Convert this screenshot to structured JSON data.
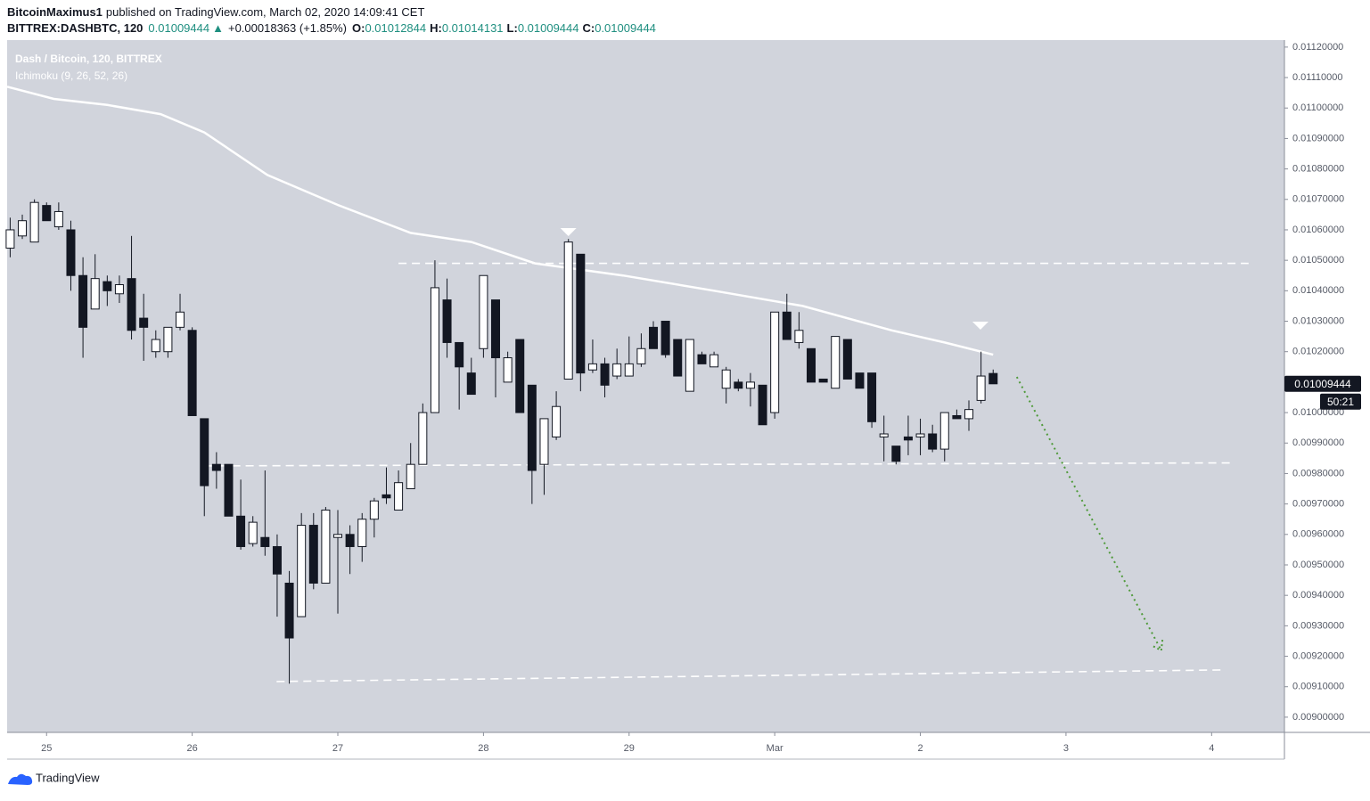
{
  "header": {
    "author": "BitcoinMaximus1",
    "published": "published on TradingView.com, March 02, 2020 14:09:41 CET",
    "symbol": "BITTREX:DASHBTC, 120",
    "arrow": "▲",
    "change": "+0.00018363 (+1.85%)",
    "o_label": "O:",
    "h_label": "H:",
    "l_label": "L:",
    "c_label": "C:",
    "countdown": "50:21",
    "footer": "TradingView"
  },
  "chart_data": {
    "type": "candlestick",
    "title": "Dash / Bitcoin, 120, BITTREX",
    "subtitle": "Ichimoku (9, 26, 52, 26)",
    "up_color": "#ffffff",
    "down_color": "#131722",
    "grid": false,
    "x": [
      -6,
      -4,
      -2,
      0,
      2,
      4,
      6,
      8,
      10,
      12,
      14,
      16,
      18,
      20,
      22,
      24,
      26,
      28,
      30,
      32,
      34,
      36,
      38,
      40,
      42,
      44,
      46,
      48,
      50,
      52,
      54,
      56,
      58,
      60,
      62,
      64,
      66,
      68,
      70,
      72,
      74,
      76,
      78,
      80,
      82,
      84,
      86,
      88,
      90,
      92,
      94,
      96,
      98,
      100,
      102,
      104,
      106,
      108,
      110,
      112,
      114,
      116,
      118,
      120,
      122,
      124,
      126,
      128,
      130,
      132,
      134,
      136,
      138,
      140,
      142,
      144,
      146,
      148,
      150,
      152,
      154,
      156
    ],
    "open": [
      0.01054,
      0.01058,
      0.01056,
      0.01068,
      0.01061,
      0.0106,
      0.01045,
      0.01034,
      0.01043,
      0.01039,
      0.01044,
      0.01031,
      0.0102,
      0.0102,
      0.01028,
      0.01027,
      0.00998,
      0.00983,
      0.00983,
      0.00966,
      0.00957,
      0.00959,
      0.00956,
      0.00944,
      0.00933,
      0.00963,
      0.00944,
      0.00959,
      0.0096,
      0.00956,
      0.00965,
      0.00973,
      0.00968,
      0.00975,
      0.00983,
      0.01,
      0.01037,
      0.01023,
      0.01013,
      0.01021,
      0.01037,
      0.0101,
      0.01024,
      0.01009,
      0.00983,
      0.00992,
      0.01011,
      0.01052,
      0.01014,
      0.01016,
      0.01012,
      0.01012,
      0.01016,
      0.01028,
      0.0103,
      0.01024,
      0.01007,
      0.01019,
      0.01015,
      0.01008,
      0.0101,
      0.01008,
      0.01009,
      0.01,
      0.01033,
      0.01023,
      0.01021,
      0.01011,
      0.01008,
      0.01024,
      0.01013,
      0.01013,
      0.00992,
      0.00989,
      0.00992,
      0.00992,
      0.00993,
      0.00988,
      0.00999,
      0.00998,
      0.01004,
      0.01012844
    ],
    "high": [
      0.01064,
      0.01065,
      0.0107,
      0.01069,
      0.01069,
      0.01063,
      0.01051,
      0.01052,
      0.01045,
      0.01045,
      0.01058,
      0.01039,
      0.01027,
      0.01028,
      0.01039,
      0.01028,
      0.00998,
      0.00987,
      0.00983,
      0.00978,
      0.00966,
      0.00981,
      0.0096,
      0.00948,
      0.00967,
      0.00967,
      0.00969,
      0.00968,
      0.00963,
      0.00967,
      0.00972,
      0.00982,
      0.00981,
      0.0099,
      0.01003,
      0.0105,
      0.01044,
      0.01023,
      0.01018,
      0.01045,
      0.01037,
      0.0102,
      0.01024,
      0.01009,
      0.00998,
      0.01007,
      0.01057,
      0.01052,
      0.01024,
      0.01018,
      0.01021,
      0.01025,
      0.01026,
      0.0103,
      0.0103,
      0.01024,
      0.01024,
      0.0102,
      0.0102,
      0.01015,
      0.01011,
      0.01013,
      0.01009,
      0.01033,
      0.01039,
      0.01033,
      0.01021,
      0.01011,
      0.01025,
      0.01024,
      0.01013,
      0.01013,
      0.00999,
      0.00989,
      0.00999,
      0.00998,
      0.00996,
      0.01,
      0.01001,
      0.01004,
      0.0102,
      0.01014131
    ],
    "low": [
      0.01051,
      0.01057,
      0.01056,
      0.01063,
      0.0106,
      0.0104,
      0.01018,
      0.01034,
      0.01035,
      0.01036,
      0.01024,
      0.01017,
      0.01018,
      0.01018,
      0.01027,
      0.00999,
      0.00966,
      0.00975,
      0.00966,
      0.00955,
      0.00956,
      0.00953,
      0.00933,
      0.00911,
      0.00933,
      0.00942,
      0.00944,
      0.00934,
      0.00947,
      0.00951,
      0.00959,
      0.0097,
      0.00968,
      0.00975,
      0.00983,
      0.01,
      0.01018,
      0.01001,
      0.01006,
      0.01018,
      0.01005,
      0.0101,
      0.01,
      0.0097,
      0.00973,
      0.00991,
      0.01011,
      0.01007,
      0.01013,
      0.01005,
      0.01011,
      0.01012,
      0.01015,
      0.01021,
      0.01018,
      0.01012,
      0.01007,
      0.01016,
      0.01015,
      0.01003,
      0.01007,
      0.01002,
      0.00996,
      0.00998,
      0.01024,
      0.01021,
      0.0101,
      0.0101,
      0.01008,
      0.01011,
      0.01008,
      0.00995,
      0.00984,
      0.00983,
      0.00986,
      0.00986,
      0.00987,
      0.00984,
      0.00998,
      0.00994,
      0.01003,
      0.01009444
    ],
    "close": [
      0.0106,
      0.01063,
      0.01069,
      0.01063,
      0.01066,
      0.01045,
      0.01028,
      0.01044,
      0.0104,
      0.01042,
      0.01027,
      0.01028,
      0.01024,
      0.01028,
      0.01033,
      0.00999,
      0.00976,
      0.00981,
      0.00966,
      0.00956,
      0.00964,
      0.00956,
      0.00947,
      0.00926,
      0.00963,
      0.00944,
      0.00968,
      0.0096,
      0.00956,
      0.00965,
      0.00971,
      0.00972,
      0.00977,
      0.00983,
      0.01,
      0.01041,
      0.01023,
      0.01015,
      0.01006,
      0.01045,
      0.01018,
      0.01018,
      0.01,
      0.00981,
      0.00998,
      0.01002,
      0.01056,
      0.01013,
      0.01016,
      0.01009,
      0.01016,
      0.01016,
      0.01021,
      0.01021,
      0.01019,
      0.01012,
      0.01024,
      0.01016,
      0.01019,
      0.01014,
      0.01008,
      0.0101,
      0.00996,
      0.01033,
      0.01024,
      0.01027,
      0.0101,
      0.0101,
      0.01025,
      0.01011,
      0.01008,
      0.00997,
      0.00993,
      0.00984,
      0.00991,
      0.00993,
      0.00988,
      0.01,
      0.00998,
      0.01001,
      0.01012,
      0.01009444
    ],
    "lines": [
      {
        "color": "#ffffff",
        "x": [
          -6.5,
          1.2,
          10,
          18.8,
          26,
          36.4,
          48.2,
          60,
          70,
          80.5,
          95,
          110,
          124.6,
          139.3,
          148,
          156
        ],
        "values": [
          0.01107,
          0.01103,
          0.01101,
          0.01098,
          0.01092,
          0.01078,
          0.01068,
          0.01059,
          0.01056,
          0.01049,
          0.01045,
          0.0104,
          0.01035,
          0.01027,
          0.01023,
          0.01019
        ]
      }
    ],
    "levels": [
      {
        "color": "#ffffff",
        "x": [
          58,
          198.1
        ],
        "values": [
          0.01049,
          0.01049
        ]
      },
      {
        "color": "#ffffff",
        "x": [
          26.2,
          195.8
        ],
        "values": [
          0.009825,
          0.009835
        ]
      },
      {
        "color": "#ffffff",
        "x": [
          37.9,
          193.7
        ],
        "values": [
          0.009117,
          0.009155
        ]
      }
    ],
    "markers": {
      "color": "#ffffff",
      "x": [
        86,
        153.9
      ],
      "values": [
        0.010594,
        0.010287
      ]
    },
    "arrow": {
      "color": "#4f9a3a",
      "x": [
        159.9,
        183.7
      ],
      "values": [
        0.010117,
        0.009219
      ]
    },
    "xlim": [
      -6.5,
      204
    ],
    "xticks": [
      {
        "value": 0,
        "label": "25"
      },
      {
        "value": 24,
        "label": "26"
      },
      {
        "value": 48,
        "label": "27"
      },
      {
        "value": 72,
        "label": "28"
      },
      {
        "value": 96,
        "label": "29"
      },
      {
        "value": 120,
        "label": "Mar"
      },
      {
        "value": 144,
        "label": "2"
      },
      {
        "value": 168,
        "label": "3"
      },
      {
        "value": 192,
        "label": "4"
      }
    ],
    "ylim": [
      0.00895,
      0.011223
    ],
    "yticks": [
      {
        "value": 0.0112,
        "label": "0.01120000"
      },
      {
        "value": 0.0111,
        "label": "0.01110000"
      },
      {
        "value": 0.011,
        "label": "0.01100000"
      },
      {
        "value": 0.0109,
        "label": "0.01090000"
      },
      {
        "value": 0.0108,
        "label": "0.01080000"
      },
      {
        "value": 0.0107,
        "label": "0.01070000"
      },
      {
        "value": 0.0106,
        "label": "0.01060000"
      },
      {
        "value": 0.0105,
        "label": "0.01050000"
      },
      {
        "value": 0.0104,
        "label": "0.01040000"
      },
      {
        "value": 0.0103,
        "label": "0.01030000"
      },
      {
        "value": 0.0102,
        "label": "0.01020000"
      },
      {
        "value": 0.0101,
        "label": "0.01010000"
      },
      {
        "value": 0.01,
        "label": "0.01000000"
      },
      {
        "value": 0.0099,
        "label": "0.00990000"
      },
      {
        "value": 0.0098,
        "label": "0.00980000"
      },
      {
        "value": 0.0097,
        "label": "0.00970000"
      },
      {
        "value": 0.0096,
        "label": "0.00960000"
      },
      {
        "value": 0.0095,
        "label": "0.00950000"
      },
      {
        "value": 0.0094,
        "label": "0.00940000"
      },
      {
        "value": 0.0093,
        "label": "0.00930000"
      },
      {
        "value": 0.0092,
        "label": "0.00920000"
      },
      {
        "value": 0.0091,
        "label": "0.00910000"
      },
      {
        "value": 0.009,
        "label": "0.00900000"
      }
    ]
  }
}
